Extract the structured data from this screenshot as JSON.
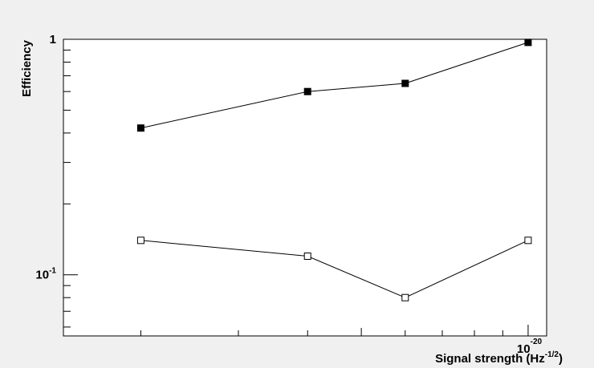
{
  "chart_data": {
    "type": "scatter",
    "title": "",
    "xlabel": "Signal strength (Hz",
    "xlabel_exponent": "-1/2",
    "xlabel_suffix": ")",
    "ylabel": "Efficiency",
    "x_scale": "log",
    "y_scale": "log",
    "xlim": [
      1.45e-21,
      1.08e-20
    ],
    "ylim": [
      0.055,
      1.0
    ],
    "grid": false,
    "legend": "none",
    "x_tick_labels": [
      {
        "value": 1e-20,
        "mantissa": "10",
        "exponent": "-20"
      }
    ],
    "y_tick_labels": [
      {
        "value": 1.0,
        "mantissa": "1",
        "exponent": ""
      },
      {
        "value": 0.1,
        "mantissa": "10",
        "exponent": "-1"
      }
    ],
    "series": [
      {
        "marker": "filled-square",
        "x": [
          2e-21,
          4e-21,
          6e-21,
          1e-20
        ],
        "y": [
          0.42,
          0.6,
          0.65,
          0.97
        ]
      },
      {
        "marker": "open-square",
        "x": [
          2e-21,
          4e-21,
          6e-21,
          1e-20
        ],
        "y": [
          0.14,
          0.12,
          0.08,
          0.14
        ]
      }
    ]
  }
}
